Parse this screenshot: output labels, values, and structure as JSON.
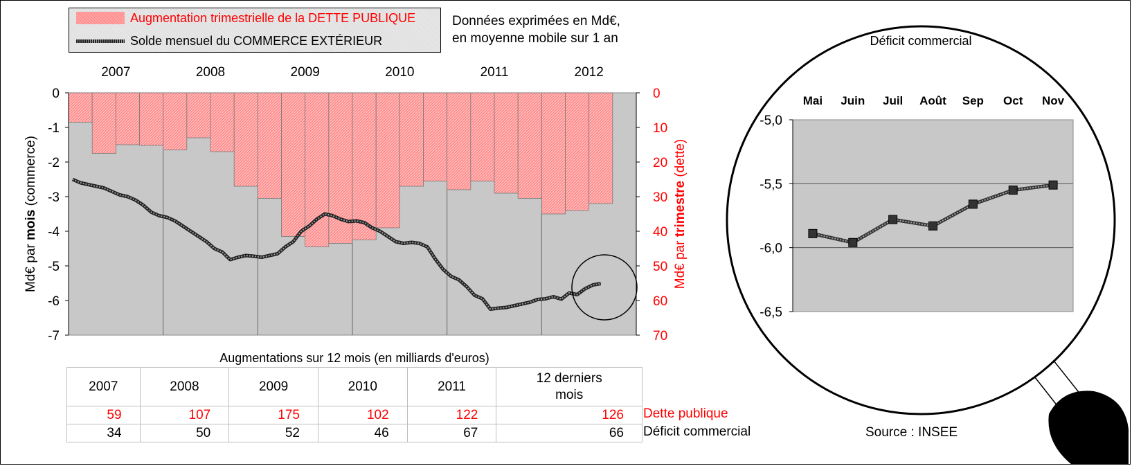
{
  "legend": {
    "bars_label": "Augmentation trimestrielle de la DETTE PUBLIQUE",
    "line_label": "Solde mensuel du COMMERCE EXTÉRIEUR"
  },
  "note": {
    "line1": "Données exprimées en Md€,",
    "line2": "en moyenne mobile sur 1 an"
  },
  "colors": {
    "debt": "#ff0000",
    "bar_fill": "#ff8c8c",
    "plot_bg": "#c8c8c8",
    "line": "#333333"
  },
  "chart_data": [
    {
      "type": "bar+line",
      "years": [
        "2007",
        "2008",
        "2009",
        "2010",
        "2011",
        "2012"
      ],
      "left_axis": {
        "label_pre": "Md€ par ",
        "label_bold": "mois",
        "label_post": " (commerce)",
        "range": [
          -7,
          0
        ],
        "ticks": [
          0,
          -1,
          -2,
          -3,
          -4,
          -5,
          -6,
          -7
        ]
      },
      "right_axis": {
        "label_pre": "Md€ par ",
        "label_bold": "trimestre",
        "label_post": " (dette)",
        "range": [
          0,
          70
        ],
        "inverted": true,
        "ticks": [
          0,
          10,
          20,
          30,
          40,
          50,
          60,
          70
        ]
      },
      "quarterly_debt_increase": [
        8.5,
        17.5,
        15,
        15.2,
        16.5,
        13,
        17,
        27,
        30.5,
        41.5,
        44.5,
        43.5,
        42.5,
        39,
        27,
        25.5,
        28,
        25.5,
        29,
        30.5,
        35,
        34,
        32
      ],
      "monthly_trade_balance": {
        "start": "2007-01",
        "values": [
          -2.5,
          -2.6,
          -2.65,
          -2.7,
          -2.75,
          -2.85,
          -2.95,
          -3.0,
          -3.1,
          -3.25,
          -3.45,
          -3.55,
          -3.6,
          -3.7,
          -3.85,
          -4.0,
          -4.15,
          -4.3,
          -4.5,
          -4.6,
          -4.82,
          -4.75,
          -4.7,
          -4.72,
          -4.75,
          -4.7,
          -4.65,
          -4.45,
          -4.3,
          -4.0,
          -3.85,
          -3.65,
          -3.5,
          -3.55,
          -3.65,
          -3.72,
          -3.7,
          -3.75,
          -3.9,
          -4.0,
          -4.15,
          -4.3,
          -4.35,
          -4.32,
          -4.35,
          -4.45,
          -4.8,
          -5.1,
          -5.3,
          -5.4,
          -5.6,
          -5.85,
          -5.95,
          -6.25,
          -6.22,
          -6.2,
          -6.15,
          -6.1,
          -6.05,
          -5.97,
          -5.95,
          -5.89,
          -5.96,
          -5.78,
          -5.83,
          -5.66,
          -5.55,
          -5.51
        ]
      }
    },
    {
      "type": "line",
      "title": "Déficit commercial",
      "categories": [
        "Mai",
        "Juin",
        "Juil",
        "Août",
        "Sep",
        "Oct",
        "Nov"
      ],
      "values": [
        -5.89,
        -5.96,
        -5.78,
        -5.83,
        -5.66,
        -5.55,
        -5.51
      ],
      "ylim": [
        -6.5,
        -5.0
      ],
      "yticks": [
        "-5,0",
        "-5,5",
        "-6,0",
        "-6,5"
      ]
    }
  ],
  "table": {
    "title": "Augmentations sur 12 mois (en milliards d'euros)",
    "headers": [
      "2007",
      "2008",
      "2009",
      "2010",
      "2011",
      "12 derniers mois"
    ],
    "header_last_line1": "12 derniers",
    "header_last_line2": "mois",
    "rows": [
      {
        "label": "Dette publique",
        "values": [
          "59",
          "107",
          "175",
          "102",
          "122",
          "126"
        ]
      },
      {
        "label": "Déficit commercial",
        "values": [
          "34",
          "50",
          "52",
          "46",
          "67",
          "66"
        ]
      }
    ]
  },
  "source": "Source : INSEE"
}
